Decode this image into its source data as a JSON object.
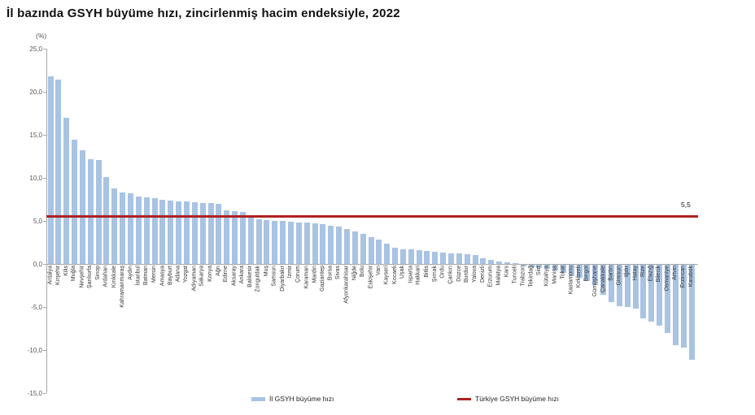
{
  "title": "İl bazında GSYH büyüme hızı, zincirlenmiş hacim endeksiyle, 2022",
  "chart_data": {
    "type": "bar",
    "unit_label": "(%)",
    "categories": [
      "Antalya",
      "Kırşehir",
      "Kilis",
      "Muğla",
      "Nevşehir",
      "Şanlıurfa",
      "Sinop",
      "Ardahan",
      "Kırıkkale",
      "Kahramanmaraş",
      "Aydın",
      "İstanbul",
      "Batman",
      "Mersin",
      "Amasya",
      "Bayburt",
      "Adana",
      "Yozgat",
      "Adıyaman",
      "Sakarya",
      "Konya",
      "Ağrı",
      "Edirne",
      "Aksaray",
      "Ankara",
      "Balıkesir",
      "Zonguldak",
      "Muş",
      "Samsun",
      "Diyarbakır",
      "İzmir",
      "Çorum",
      "Karaman",
      "Mardin",
      "Gaziantep",
      "Bursa",
      "Sivas",
      "Afyonkarahisar",
      "Niğde",
      "Bolu",
      "Eskişehir",
      "Van",
      "Kayseri",
      "Kocaeli",
      "Uşak",
      "Isparta",
      "Hakkari",
      "Bitlis",
      "Şırnak",
      "Ordu",
      "Çankırı",
      "Düzce",
      "Burdur",
      "Yalova",
      "Denizli",
      "Erzurum",
      "Malatya",
      "Kars",
      "Tunceli",
      "Trabzon",
      "Tekirdağ",
      "Siirt",
      "Kütahya",
      "Manisa",
      "Tokat",
      "Kastamonu",
      "Kırklareli",
      "Bingöl",
      "Gümüşhane",
      "Çanakkale",
      "Bartın",
      "Giresun",
      "Iğdır",
      "Hatay",
      "Rize",
      "Elazığ",
      "Bilecik",
      "Osmaniye",
      "Artvin",
      "Erzincan",
      "Karabük"
    ],
    "values": [
      21.8,
      21.4,
      17.0,
      14.4,
      13.2,
      12.2,
      12.1,
      10.1,
      8.8,
      8.3,
      8.2,
      7.8,
      7.7,
      7.6,
      7.5,
      7.4,
      7.3,
      7.3,
      7.2,
      7.1,
      7.1,
      7.0,
      6.2,
      6.1,
      6.0,
      5.7,
      5.2,
      5.1,
      5.0,
      5.0,
      4.9,
      4.8,
      4.8,
      4.7,
      4.6,
      4.4,
      4.3,
      4.1,
      3.8,
      3.5,
      3.1,
      2.8,
      2.4,
      1.9,
      1.7,
      1.7,
      1.6,
      1.5,
      1.4,
      1.3,
      1.2,
      1.2,
      1.1,
      1.0,
      0.7,
      0.5,
      0.3,
      0.2,
      0.1,
      -0.2,
      -0.3,
      -0.4,
      -0.5,
      -0.7,
      -0.9,
      -1.3,
      -1.5,
      -1.9,
      -2.4,
      -3.5,
      -4.3,
      -4.8,
      -4.9,
      -5.1,
      -6.2,
      -6.6,
      -7.1,
      -7.9,
      -9.3,
      -9.6,
      -11.0
    ],
    "series_name": "İl GSYH büyüme hızı",
    "reference_line": {
      "label": "Türkiye GSYH büyüme hızı",
      "value": 5.5,
      "value_label": "5,5"
    },
    "ylim": [
      -15,
      25
    ],
    "yticks": [
      "25,0",
      "20,0",
      "15,0",
      "10,0",
      "5,0",
      "0,0",
      "-5,0",
      "-10,0",
      "-15,0"
    ],
    "grid": "off",
    "legend_position": "bottom",
    "bar_color": "#a9c3e3",
    "line_color": "#b02121"
  },
  "legend": {
    "series_label": "İl GSYH büyüme hızı",
    "line_label": "Türkiye GSYH büyüme hızı"
  }
}
